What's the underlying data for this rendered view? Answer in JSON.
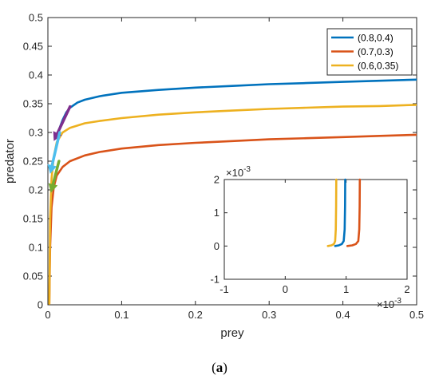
{
  "chart_data": [
    {
      "type": "line",
      "xlabel": "prey",
      "ylabel": "predator",
      "xlim": [
        0,
        0.5
      ],
      "ylim": [
        0,
        0.5
      ],
      "xticks": [
        "0",
        "0.1",
        "0.2",
        "0.3",
        "0.4",
        "0.5"
      ],
      "yticks": [
        "0",
        "0.05",
        "0.1",
        "0.15",
        "0.2",
        "0.25",
        "0.3",
        "0.35",
        "0.4",
        "0.45",
        "0.5"
      ],
      "grid": false,
      "legend": "top-right",
      "series": [
        {
          "name": "(0.8,0.4)",
          "color": "#0072BD",
          "x": [
            0.015,
            0.02,
            0.025,
            0.03,
            0.04,
            0.05,
            0.07,
            0.1,
            0.15,
            0.2,
            0.25,
            0.3,
            0.35,
            0.4,
            0.45,
            0.5
          ],
          "y": [
            0.305,
            0.322,
            0.335,
            0.343,
            0.352,
            0.357,
            0.363,
            0.369,
            0.374,
            0.378,
            0.381,
            0.384,
            0.386,
            0.388,
            0.39,
            0.392
          ]
        },
        {
          "name": "(0.7,0.3)",
          "color": "#D95319",
          "x": [
            0.002,
            0.003,
            0.005,
            0.008,
            0.012,
            0.02,
            0.03,
            0.05,
            0.07,
            0.1,
            0.15,
            0.2,
            0.25,
            0.3,
            0.35,
            0.4,
            0.45,
            0.5
          ],
          "y": [
            0.002,
            0.1,
            0.17,
            0.205,
            0.225,
            0.24,
            0.25,
            0.26,
            0.266,
            0.272,
            0.278,
            0.282,
            0.285,
            0.288,
            0.29,
            0.292,
            0.294,
            0.296
          ]
        },
        {
          "name": "(0.6,0.35)",
          "color": "#EDB120",
          "x": [
            0.002,
            0.003,
            0.005,
            0.008,
            0.012,
            0.02,
            0.03,
            0.05,
            0.07,
            0.1,
            0.15,
            0.2,
            0.25,
            0.3,
            0.35,
            0.4,
            0.45,
            0.5
          ],
          "y": [
            0.002,
            0.15,
            0.22,
            0.258,
            0.283,
            0.3,
            0.308,
            0.316,
            0.32,
            0.325,
            0.331,
            0.335,
            0.338,
            0.341,
            0.343,
            0.345,
            0.346,
            0.348
          ]
        }
      ],
      "arrows": [
        {
          "color": "#7E2F8E",
          "x1": 0.03,
          "y1": 0.345,
          "x2": 0.008,
          "y2": 0.285
        },
        {
          "color": "#4DBEEE",
          "x1": 0.016,
          "y1": 0.3,
          "x2": 0.003,
          "y2": 0.228
        },
        {
          "color": "#77AC30",
          "x1": 0.015,
          "y1": 0.25,
          "x2": 0.004,
          "y2": 0.195
        }
      ]
    },
    {
      "type": "line",
      "xlim": [
        -1,
        2
      ],
      "ylim": [
        -1,
        2
      ],
      "xticks": [
        "-1",
        "0",
        "1",
        "2"
      ],
      "yticks": [
        "-1",
        "0",
        "1",
        "2"
      ],
      "x_exponent": "×10",
      "x_exponent_power": "-3",
      "y_exponent": "×10",
      "y_exponent_power": "-3",
      "series": [
        {
          "color": "#EDB120",
          "x": [
            0.7,
            0.76,
            0.8,
            0.82,
            0.83,
            0.835,
            0.838
          ],
          "y": [
            0.0,
            0.02,
            0.06,
            0.15,
            0.5,
            1.2,
            2.0
          ]
        },
        {
          "color": "#0072BD",
          "x": [
            0.82,
            0.88,
            0.93,
            0.96,
            0.975,
            0.982,
            0.985
          ],
          "y": [
            0.0,
            0.02,
            0.06,
            0.15,
            0.5,
            1.2,
            2.0
          ]
        },
        {
          "color": "#D95319",
          "x": [
            1.02,
            1.1,
            1.16,
            1.2,
            1.215,
            1.222,
            1.225
          ],
          "y": [
            0.0,
            0.02,
            0.06,
            0.15,
            0.5,
            1.2,
            2.0
          ]
        }
      ]
    }
  ],
  "caption": {
    "open": "(",
    "label": "a",
    "close": ")"
  }
}
